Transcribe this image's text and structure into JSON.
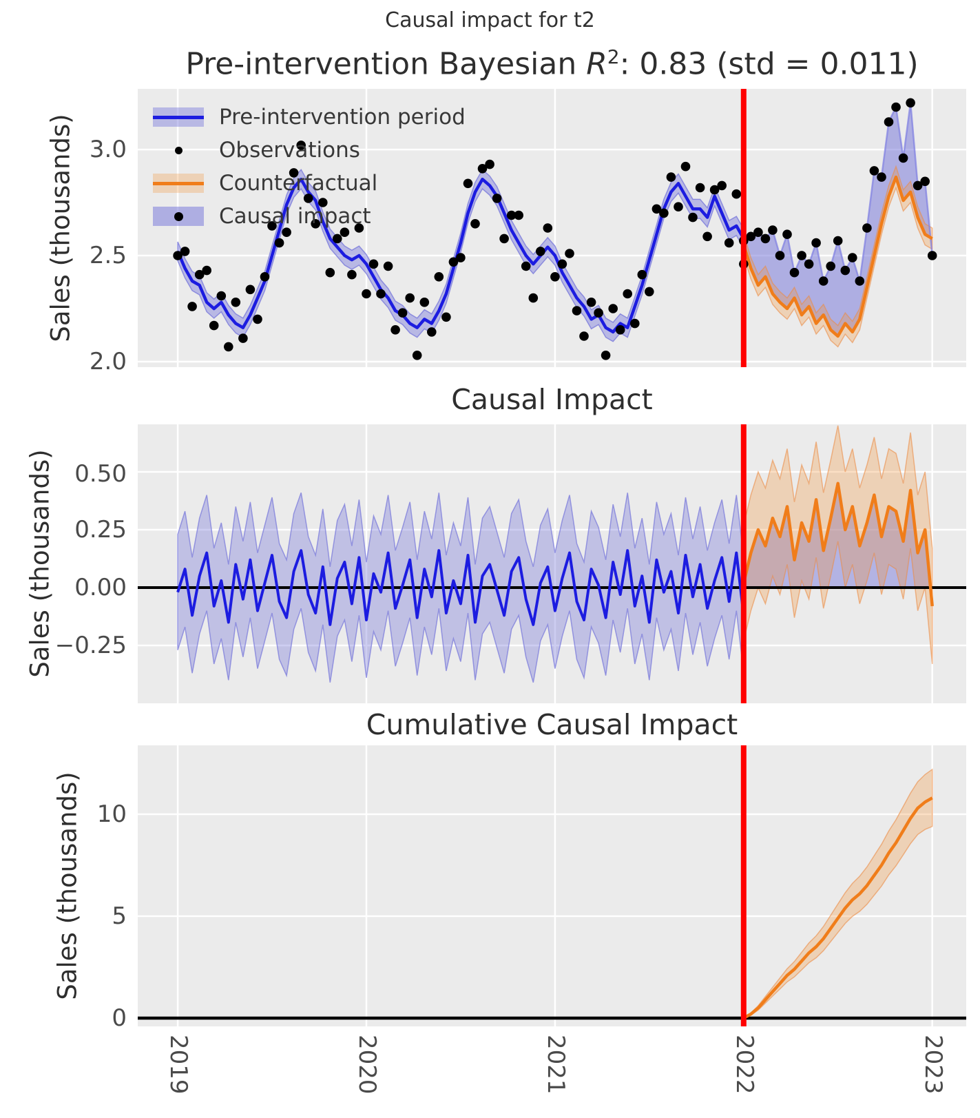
{
  "suptitle": "Causal impact for t2",
  "panel1": {
    "title": {
      "prefix": "Pre-intervention Bayesian ",
      "math_var": "R",
      "math_sup": "2",
      "suffix": ": 0.83 (std = 0.011)"
    },
    "ylabel": "Sales (thousands)",
    "yticklabels": [
      "3.0",
      "2.5",
      "2.0"
    ],
    "legend": [
      {
        "label": "Pre-intervention period",
        "type": "line-with-band",
        "line_color": "#1c1ce0",
        "band_color": "rgba(123,123,219,0.45)"
      },
      {
        "label": "Observations",
        "type": "dot",
        "color": "#000000"
      },
      {
        "label": "Counterfactual",
        "type": "line-with-band",
        "line_color": "#f07d1a",
        "band_color": "rgba(243,150,60,0.30)"
      },
      {
        "label": "Causal impact",
        "type": "fill-with-dot",
        "fill_color": "rgba(123,123,219,0.55)",
        "dot_color": "#000000"
      }
    ]
  },
  "panel2": {
    "title": "Causal Impact",
    "ylabel": "Sales (thousands)",
    "yticklabels": [
      "0.50",
      "0.25",
      "0.00",
      "−0.25"
    ]
  },
  "panel3": {
    "title": "Cumulative Causal Impact",
    "ylabel": "Sales (thousands)",
    "yticklabels": [
      "10",
      "5",
      "0"
    ]
  },
  "xticklabels": [
    "2019",
    "2020",
    "2021",
    "2022",
    "2023"
  ],
  "colors": {
    "figure_background": "#ffffff",
    "plot_background": "#ebebeb",
    "gridline": "#ffffff",
    "blue_line": "#1c1ce0",
    "blue_band": "rgba(123,123,219,0.45)",
    "causal_fill": "rgba(123,123,219,0.55)",
    "orange_line": "#f07d1a",
    "orange_band": "rgba(243,150,60,0.30)",
    "observation_dot": "#000000",
    "intervention_line": "#ff0000",
    "zero_line": "#000000",
    "tick_text": "#4a4a4a",
    "title_text": "#2e2e2e"
  },
  "chart_data": {
    "type": "line",
    "x_unit": "year",
    "xlim": [
      2018.788,
      2023.18
    ],
    "xticks": [
      2019,
      2020,
      2021,
      2022,
      2023
    ],
    "intervention_x": 2022.0,
    "panels": [
      {
        "title": "Pre-intervention Bayesian R^2: 0.83 (std = 0.011)",
        "ylabel": "Sales (thousands)",
        "ylim": [
          1.974,
          3.286
        ],
        "yticks": [
          2.0,
          2.5,
          3.0
        ]
      },
      {
        "title": "Causal Impact",
        "ylabel": "Sales (thousands)",
        "ylim": [
          -0.5,
          0.7054
        ],
        "yticks": [
          -0.25,
          0.0,
          0.25,
          0.5
        ]
      },
      {
        "title": "Cumulative Causal Impact",
        "ylabel": "Sales (thousands)",
        "ylim": [
          -0.405,
          13.379
        ],
        "yticks": [
          0,
          5,
          10
        ]
      }
    ],
    "pre": {
      "x_start": 2019.0,
      "x_step": 0.0384615,
      "fit": [
        2.52,
        2.44,
        2.38,
        2.36,
        2.28,
        2.25,
        2.28,
        2.22,
        2.18,
        2.16,
        2.22,
        2.3,
        2.38,
        2.5,
        2.62,
        2.74,
        2.82,
        2.86,
        2.8,
        2.76,
        2.66,
        2.58,
        2.54,
        2.5,
        2.48,
        2.5,
        2.46,
        2.4,
        2.34,
        2.3,
        2.24,
        2.22,
        2.18,
        2.16,
        2.2,
        2.18,
        2.24,
        2.32,
        2.44,
        2.56,
        2.7,
        2.8,
        2.86,
        2.83,
        2.78,
        2.7,
        2.62,
        2.56,
        2.5,
        2.46,
        2.5,
        2.54,
        2.5,
        2.42,
        2.36,
        2.3,
        2.26,
        2.2,
        2.22,
        2.16,
        2.14,
        2.18,
        2.16,
        2.26,
        2.36,
        2.48,
        2.6,
        2.72,
        2.8,
        2.84,
        2.78,
        2.72,
        2.72,
        2.68,
        2.78,
        2.7,
        2.62,
        2.64,
        2.58
      ],
      "residual_impact": [
        -0.02,
        0.08,
        -0.12,
        0.05,
        0.15,
        -0.08,
        0.03,
        -0.15,
        0.1,
        -0.05,
        0.12,
        -0.1,
        0.02,
        0.14,
        -0.06,
        -0.13,
        0.07,
        0.16,
        -0.03,
        -0.11,
        0.09,
        -0.16,
        0.04,
        0.11,
        -0.07,
        0.13,
        -0.14,
        0.06,
        -0.02,
        0.15,
        -0.09,
        0.01,
        0.12,
        -0.13,
        0.08,
        -0.04,
        0.16,
        -0.11,
        0.03,
        -0.07,
        0.14,
        -0.15,
        0.05,
        0.1,
        -0.01,
        -0.12,
        0.07,
        0.13,
        -0.05,
        -0.16,
        0.02,
        0.09,
        -0.1,
        0.04,
        0.15,
        -0.06,
        -0.14,
        0.08,
        0.01,
        -0.13,
        0.11,
        -0.03,
        0.16,
        -0.08,
        0.05,
        -0.15,
        0.12,
        -0.02,
        0.07,
        -0.11,
        0.14,
        -0.04,
        0.1,
        -0.09,
        0.03,
        0.13,
        -0.06,
        0.15,
        -0.12
      ],
      "fit_band_halfwidth": 0.045,
      "impact_band_halfwidth": 0.25
    },
    "post": {
      "x_start": 2022.0,
      "x_step": 0.0384615,
      "counterfactual": [
        2.55,
        2.44,
        2.36,
        2.4,
        2.32,
        2.28,
        2.25,
        2.3,
        2.22,
        2.26,
        2.18,
        2.22,
        2.15,
        2.12,
        2.18,
        2.14,
        2.2,
        2.35,
        2.5,
        2.65,
        2.78,
        2.87,
        2.76,
        2.8,
        2.68,
        2.6,
        2.58
      ],
      "impact": [
        0.02,
        0.15,
        0.25,
        0.18,
        0.3,
        0.22,
        0.35,
        0.12,
        0.28,
        0.2,
        0.38,
        0.16,
        0.3,
        0.45,
        0.25,
        0.35,
        0.18,
        0.28,
        0.4,
        0.22,
        0.35,
        0.33,
        0.2,
        0.42,
        0.15,
        0.25,
        -0.08
      ],
      "cumulative": [
        0,
        0.2,
        0.5,
        0.9,
        1.3,
        1.7,
        2.1,
        2.4,
        2.8,
        3.2,
        3.5,
        3.9,
        4.4,
        4.9,
        5.4,
        5.8,
        6.1,
        6.5,
        7.0,
        7.5,
        8.1,
        8.6,
        9.2,
        9.8,
        10.3,
        10.6,
        10.8
      ],
      "counterfactual_band_halfwidth": 0.05,
      "impact_band_halfwidth": 0.25,
      "cumulative_band_halfwidth_end": 1.4
    }
  }
}
